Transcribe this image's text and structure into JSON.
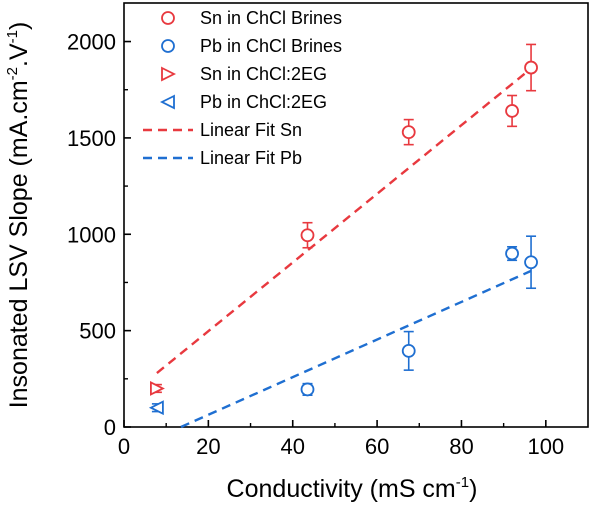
{
  "chart_data": {
    "type": "scatter",
    "xlabel": "Conductivity (mS cm",
    "xlabel_sup": "-1",
    "xlabel_end": ")",
    "ylabel_parts": [
      "Insonated LSV Slope (mA.cm",
      "-2",
      ".V",
      "-1",
      ")"
    ],
    "xlim": [
      0,
      110
    ],
    "ylim": [
      0,
      2200
    ],
    "xticks": [
      0,
      20,
      40,
      60,
      80,
      100
    ],
    "yticks": [
      0,
      500,
      1000,
      1500,
      2000
    ],
    "grid": false,
    "legend_position": "top-right",
    "series": [
      {
        "name": "Sn in ChCl Brines",
        "marker": "circle",
        "color": "#e8393f",
        "points": [
          {
            "x": 43.5,
            "y": 995,
            "err": 65
          },
          {
            "x": 67.5,
            "y": 1530,
            "err": 65
          },
          {
            "x": 92,
            "y": 1640,
            "err": 80
          },
          {
            "x": 96.5,
            "y": 1865,
            "err": 120
          }
        ]
      },
      {
        "name": "Pb in ChCl Brines",
        "marker": "circle",
        "color": "#1f6fd1",
        "points": [
          {
            "x": 43.5,
            "y": 195,
            "err": 30
          },
          {
            "x": 67.5,
            "y": 395,
            "err": 100
          },
          {
            "x": 92,
            "y": 900,
            "err": 35
          },
          {
            "x": 96.5,
            "y": 855,
            "err": 135
          }
        ]
      },
      {
        "name": "Sn in ChCl:2EG",
        "marker": "triangle-right",
        "color": "#e8393f",
        "points": [
          {
            "x": 7.8,
            "y": 200,
            "err": 20
          }
        ]
      },
      {
        "name": "Pb in ChCl:2EG",
        "marker": "triangle-left",
        "color": "#1f6fd1",
        "points": [
          {
            "x": 7.8,
            "y": 100,
            "err": 20
          }
        ]
      }
    ],
    "fits": [
      {
        "name": "Linear Fit Sn",
        "color": "#e8393f",
        "x": [
          7.8,
          96.5
        ],
        "y": [
          280,
          1860
        ]
      },
      {
        "name": "Linear Fit Pb",
        "color": "#1f6fd1",
        "x": [
          13.5,
          96.5
        ],
        "y": [
          0,
          810
        ]
      }
    ]
  }
}
